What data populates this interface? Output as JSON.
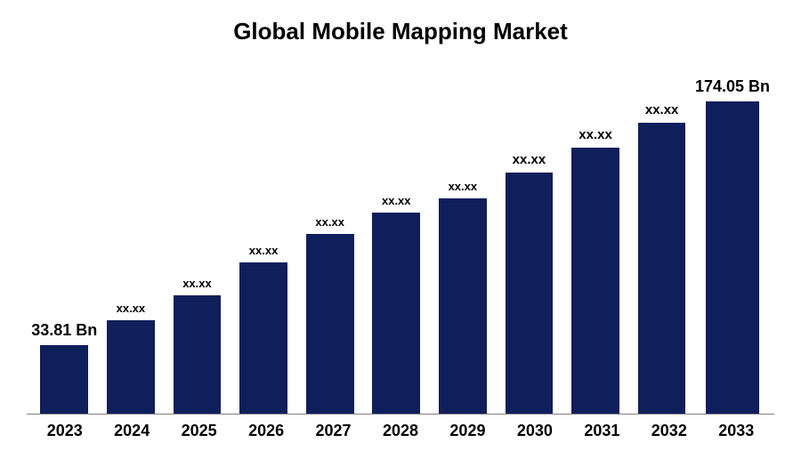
{
  "chart": {
    "type": "bar",
    "title": "Global Mobile Mapping Market",
    "title_fontsize": 26,
    "title_fontweight": 700,
    "title_color": "#000000",
    "background_color": "#ffffff",
    "bar_color": "#0f1f5c",
    "axis_line_color": "#808080",
    "bar_width_pct": 72,
    "categories": [
      "2023",
      "2024",
      "2025",
      "2026",
      "2027",
      "2028",
      "2029",
      "2030",
      "2031",
      "2032",
      "2033"
    ],
    "values_display": [
      "33.81 Bn",
      "xx.xx",
      "xx.xx",
      "xx.xx",
      "xx.xx",
      "xx.xx",
      "xx.xx",
      "xx.xx",
      "xx.xx",
      "xx.xx",
      "174.05 Bn"
    ],
    "bar_heights_pct": [
      19,
      26,
      33,
      42,
      50,
      56,
      60,
      67,
      74,
      81,
      87
    ],
    "label_fontsizes": [
      18,
      13,
      13,
      13,
      13,
      13,
      13,
      15,
      15,
      15,
      18
    ],
    "xaxis_fontsize": 18,
    "xaxis_fontweight": 700,
    "xaxis_color": "#000000",
    "label_color": "#000000",
    "label_fontweight": 700
  }
}
